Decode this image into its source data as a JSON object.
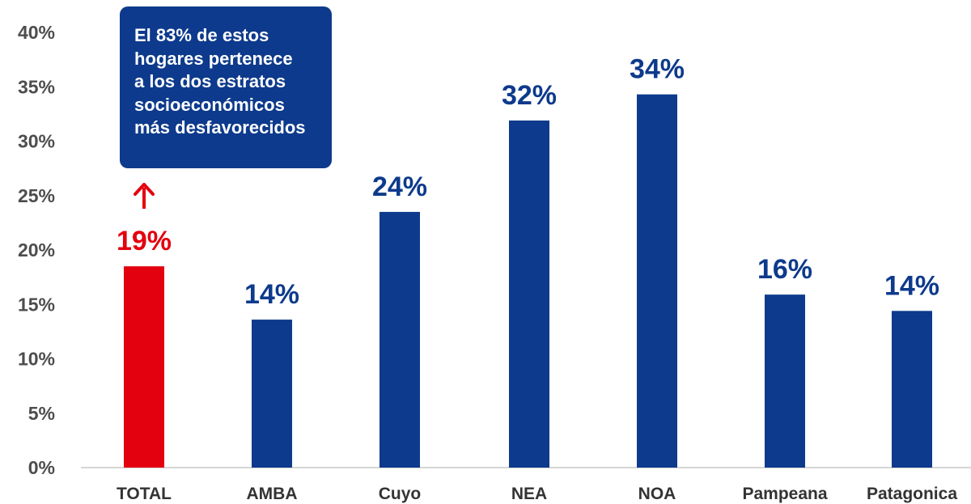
{
  "chart_data": {
    "type": "bar",
    "categories": [
      "TOTAL",
      "AMBA",
      "Cuyo",
      "NEA",
      "NOA",
      "Pampeana",
      "Patagonica"
    ],
    "values": [
      18.5,
      13.6,
      23.5,
      31.9,
      34.3,
      15.9,
      14.4
    ],
    "data_labels": [
      "19%",
      "14%",
      "24%",
      "32%",
      "34%",
      "16%",
      "14%"
    ],
    "highlight_index": 0,
    "colors": {
      "default": "#0d3a8c",
      "highlight": "#e3000f"
    },
    "ylim": [
      0,
      40
    ],
    "yticks": [
      0,
      5,
      10,
      15,
      20,
      25,
      30,
      35,
      40
    ],
    "ytick_labels": [
      "0%",
      "5%",
      "10%",
      "15%",
      "20%",
      "25%",
      "30%",
      "35%",
      "40%"
    ],
    "grid": false,
    "legend": "none"
  },
  "callout": {
    "lines": [
      "El 83% de estos",
      "hogares pertenece",
      "a los dos estratos",
      "socioeconómicos",
      "más desfavorecidos"
    ],
    "background": "#0d3a8c",
    "arrow_icon": "arrow-up-icon",
    "arrow_color": "#e3000f"
  }
}
